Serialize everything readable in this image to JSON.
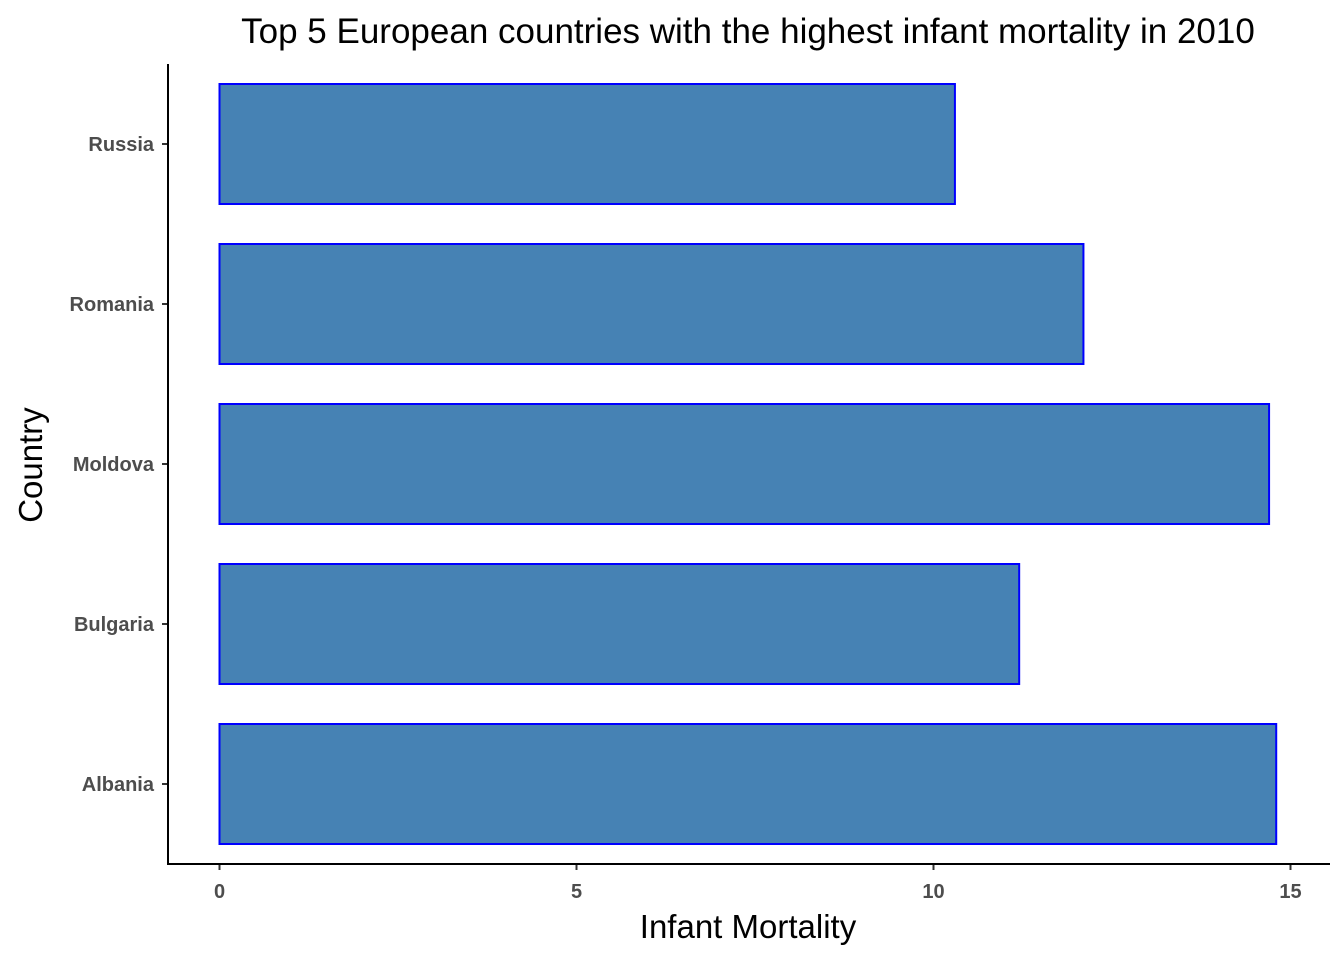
{
  "chart_data": {
    "type": "bar",
    "orientation": "horizontal",
    "title": "Top 5 European countries with the highest infant mortality in 2010",
    "xlabel": "Infant Mortality",
    "ylabel": "Country",
    "categories": [
      "Albania",
      "Bulgaria",
      "Moldova",
      "Romania",
      "Russia"
    ],
    "values": [
      14.8,
      11.2,
      14.7,
      12.1,
      10.3
    ],
    "xlim": [
      0,
      15
    ],
    "xticks": [
      0,
      5,
      10,
      15
    ],
    "xtick_labels": [
      "0",
      "5",
      "10",
      "15"
    ],
    "grid": false,
    "legend": "none",
    "bar_fill": "#4682b4",
    "bar_outline": "#0000ff"
  }
}
